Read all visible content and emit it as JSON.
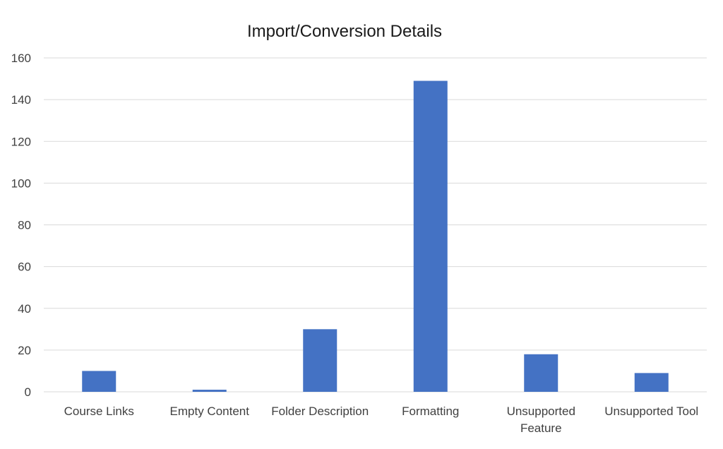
{
  "chart_data": {
    "type": "bar",
    "title": "Import/Conversion Details",
    "categories": [
      "Course Links",
      "Empty Content",
      "Folder Description",
      "Formatting",
      "Unsupported Feature",
      "Unsupported Tool"
    ],
    "category_label_lines": [
      [
        "Course Links"
      ],
      [
        "Empty Content"
      ],
      [
        "Folder Description"
      ],
      [
        "Formatting"
      ],
      [
        "Unsupported",
        "Feature"
      ],
      [
        "Unsupported Tool"
      ]
    ],
    "series": [
      {
        "values": [
          10,
          1,
          30,
          149,
          18,
          9
        ]
      }
    ],
    "ylim": [
      0,
      160
    ],
    "yticks": [
      0,
      20,
      40,
      60,
      80,
      100,
      120,
      140,
      160
    ],
    "grid": true,
    "legend": "none",
    "colors": {
      "bar": "#4472C4",
      "grid": "#D9D9D9",
      "axis": "#D9D9D9",
      "text": "#404040",
      "title": "#1a1a1a"
    }
  }
}
